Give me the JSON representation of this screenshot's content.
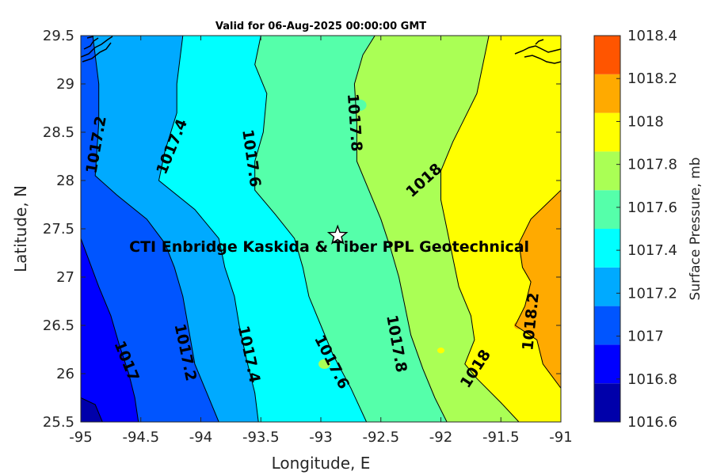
{
  "chart_data": {
    "type": "filled-contour",
    "title": "Valid for 06-Aug-2025 00:00:00 GMT",
    "xlabel": "Longitude, E",
    "ylabel": "Latitude, N",
    "colorbar_label": "Surface Pressure, mb",
    "xlim": [
      -95,
      -91
    ],
    "ylim": [
      25.5,
      29.5
    ],
    "xticks": [
      -95,
      -94.5,
      -94,
      -93.5,
      -93,
      -92.5,
      -92,
      -91.5,
      -91
    ],
    "xtick_labels": [
      "-95",
      "-94.5",
      "-94",
      "-93.5",
      "-93",
      "-92.5",
      "-92",
      "-91.5",
      "-91"
    ],
    "yticks": [
      25.5,
      26,
      26.5,
      27,
      27.5,
      28,
      28.5,
      29,
      29.5
    ],
    "ytick_labels": [
      "25.5",
      "26",
      "26.5",
      "27",
      "27.5",
      "28",
      "28.5",
      "29",
      "29.5"
    ],
    "levels": [
      1016.6,
      1016.8,
      1017,
      1017.2,
      1017.4,
      1017.6,
      1017.8,
      1018,
      1018.2,
      1018.4
    ],
    "level_labels": [
      "1016.6",
      "1016.8",
      "1017",
      "1017.2",
      "1017.4",
      "1017.6",
      "1017.8",
      "1018",
      "1018.2",
      "1018.4"
    ],
    "colors": [
      "#0000AA",
      "#0000FF",
      "#0055FF",
      "#00AAFF",
      "#00FFFF",
      "#55FFAA",
      "#AAFF55",
      "#FFFF00",
      "#FFAA00",
      "#FF5500"
    ],
    "contour_lines": [
      {
        "level": 1016.8,
        "points": [
          [
            -95,
            25.75
          ],
          [
            -94.88,
            25.68
          ],
          [
            -94.82,
            25.5
          ]
        ]
      },
      {
        "level": 1017,
        "points": [
          [
            -95,
            27.4
          ],
          [
            -94.85,
            26.9
          ],
          [
            -94.75,
            26.6
          ],
          [
            -94.68,
            26.3
          ],
          [
            -94.6,
            26.0
          ],
          [
            -94.55,
            25.75
          ],
          [
            -94.52,
            25.5
          ]
        ]
      },
      {
        "level": 1017.2,
        "points": [
          [
            -94.9,
            29.5
          ],
          [
            -94.85,
            29.0
          ],
          [
            -94.85,
            28.6
          ],
          [
            -94.88,
            28.05
          ],
          [
            -94.7,
            27.85
          ],
          [
            -94.45,
            27.6
          ],
          [
            -94.3,
            27.35
          ],
          [
            -94.22,
            27.1
          ],
          [
            -94.15,
            26.8
          ],
          [
            -94.1,
            26.45
          ],
          [
            -94.05,
            26.1
          ],
          [
            -93.95,
            25.8
          ],
          [
            -93.85,
            25.5
          ]
        ]
      },
      {
        "level": 1017.4,
        "points": [
          [
            -94.15,
            29.5
          ],
          [
            -94.2,
            29.0
          ],
          [
            -94.2,
            28.7
          ],
          [
            -94.3,
            28.3
          ],
          [
            -94.35,
            28.0
          ],
          [
            -94.05,
            27.7
          ],
          [
            -93.85,
            27.4
          ],
          [
            -93.8,
            27.1
          ],
          [
            -93.72,
            26.8
          ],
          [
            -93.68,
            26.5
          ],
          [
            -93.62,
            26.15
          ],
          [
            -93.55,
            25.8
          ],
          [
            -93.52,
            25.5
          ]
        ]
      },
      {
        "level": 1017.6,
        "points": [
          [
            -93.5,
            29.5
          ],
          [
            -93.55,
            29.2
          ],
          [
            -93.45,
            28.9
          ],
          [
            -93.48,
            28.5
          ],
          [
            -93.55,
            28.2
          ],
          [
            -93.55,
            27.9
          ],
          [
            -93.38,
            27.65
          ],
          [
            -93.22,
            27.4
          ],
          [
            -93.15,
            27.1
          ],
          [
            -93.1,
            26.8
          ],
          [
            -93.0,
            26.5
          ],
          [
            -92.9,
            26.2
          ],
          [
            -92.75,
            25.85
          ],
          [
            -92.62,
            25.5
          ]
        ]
      },
      {
        "level": 1017.8,
        "points": [
          [
            -92.55,
            29.5
          ],
          [
            -92.65,
            29.3
          ],
          [
            -92.72,
            29.0
          ],
          [
            -92.7,
            28.6
          ],
          [
            -92.7,
            28.2
          ],
          [
            -92.6,
            27.9
          ],
          [
            -92.5,
            27.6
          ],
          [
            -92.42,
            27.3
          ],
          [
            -92.35,
            27.0
          ],
          [
            -92.3,
            26.7
          ],
          [
            -92.25,
            26.4
          ],
          [
            -92.15,
            26.05
          ],
          [
            -92.05,
            25.75
          ],
          [
            -91.95,
            25.5
          ]
        ]
      },
      {
        "level": 1018,
        "points": [
          [
            -91.6,
            29.5
          ],
          [
            -91.65,
            29.2
          ],
          [
            -91.7,
            28.9
          ],
          [
            -91.8,
            28.65
          ],
          [
            -91.9,
            28.4
          ],
          [
            -92.0,
            28.1
          ],
          [
            -92.0,
            27.8
          ],
          [
            -91.95,
            27.5
          ],
          [
            -91.9,
            27.2
          ],
          [
            -91.85,
            26.9
          ],
          [
            -91.75,
            26.6
          ],
          [
            -91.72,
            26.35
          ],
          [
            -91.8,
            26.1
          ],
          [
            -91.7,
            25.95
          ],
          [
            -91.5,
            25.7
          ],
          [
            -91.35,
            25.5
          ]
        ]
      },
      {
        "level": 1018.2,
        "points": [
          [
            -91,
            27.9
          ],
          [
            -91.25,
            27.6
          ],
          [
            -91.35,
            27.35
          ],
          [
            -91.32,
            27.1
          ],
          [
            -91.25,
            26.95
          ],
          [
            -91.3,
            26.7
          ],
          [
            -91.38,
            26.5
          ],
          [
            -91.2,
            26.35
          ],
          [
            -91.15,
            26.1
          ],
          [
            -91,
            25.85
          ]
        ]
      }
    ],
    "contour_labels": [
      {
        "text": "1017.2",
        "lon": -94.87,
        "lat": 28.37,
        "angle": -80
      },
      {
        "text": "1017.4",
        "lon": -94.24,
        "lat": 28.35,
        "angle": -68
      },
      {
        "text": "1017.6",
        "lon": -93.58,
        "lat": 28.23,
        "angle": 82
      },
      {
        "text": "1017.8",
        "lon": -92.72,
        "lat": 28.6,
        "angle": 86
      },
      {
        "text": "1018",
        "lon": -92.14,
        "lat": 28.0,
        "angle": -42
      },
      {
        "text": "1017",
        "lon": -94.62,
        "lat": 26.13,
        "angle": 68
      },
      {
        "text": "1017.2",
        "lon": -94.13,
        "lat": 26.22,
        "angle": 78
      },
      {
        "text": "1017.4",
        "lon": -93.6,
        "lat": 26.2,
        "angle": 78
      },
      {
        "text": "1017.6",
        "lon": -92.91,
        "lat": 26.12,
        "angle": 63
      },
      {
        "text": "1017.8",
        "lon": -92.37,
        "lat": 26.31,
        "angle": 80
      },
      {
        "text": "1018",
        "lon": -91.71,
        "lat": 26.05,
        "angle": -57
      },
      {
        "text": "1018.2",
        "lon": -91.25,
        "lat": 26.54,
        "angle": -84
      }
    ],
    "marker": {
      "symbol": "star",
      "lon": -92.86,
      "lat": 27.43
    },
    "annotation": {
      "text": "CTI Enbridge  Kaskida & Tiber PPL Geotechnical",
      "lon": -92.93,
      "lat": 27.32
    }
  }
}
